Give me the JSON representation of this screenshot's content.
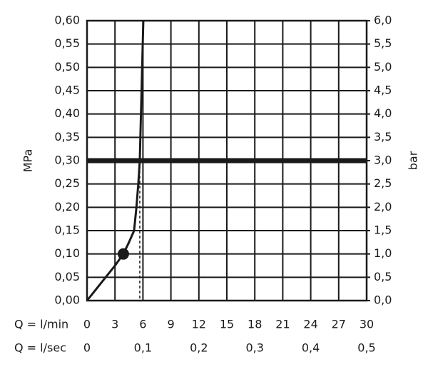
{
  "chart_data": {
    "type": "line",
    "y_label": "MPa",
    "y2_label": "bar",
    "x_label": "Q = l/min",
    "x2_label": "Q = l/sec",
    "x": [
      0,
      1,
      2,
      3,
      3.9,
      4.5,
      5.05,
      5.3,
      5.5,
      5.66,
      5.85,
      6.04
    ],
    "values": [
      0,
      0.025,
      0.05,
      0.075,
      0.1,
      0.125,
      0.15,
      0.2,
      0.25,
      0.3,
      0.45,
      0.6
    ],
    "color": "#1a1a1a",
    "operating_point": {
      "x": 3.9,
      "y": 0.1
    },
    "reference_pressure": 0.3,
    "drop_line_x": 5.66,
    "xlim": [
      0,
      30
    ],
    "xticks": [
      0,
      3,
      6,
      9,
      12,
      15,
      18,
      21,
      24,
      27,
      30
    ],
    "x2lim": [
      0,
      0.5
    ],
    "x2ticks": [
      0,
      {
        "value": 0.1,
        "label": "0,1"
      },
      {
        "value": 0.2,
        "label": "0,2"
      },
      {
        "value": 0.3,
        "label": "0,3"
      },
      {
        "value": 0.4,
        "label": "0,4"
      },
      {
        "value": 0.5,
        "label": "0,5"
      }
    ],
    "ylim": [
      0,
      0.6
    ],
    "yticks": [
      {
        "value": 0,
        "label": "0,00"
      },
      {
        "value": 0.05,
        "label": "0,05"
      },
      {
        "value": 0.1,
        "label": "0,10"
      },
      {
        "value": 0.15,
        "label": "0,15"
      },
      {
        "value": 0.2,
        "label": "0,20"
      },
      {
        "value": 0.25,
        "label": "0,25"
      },
      {
        "value": 0.3,
        "label": "0,30"
      },
      {
        "value": 0.35,
        "label": "0,35"
      },
      {
        "value": 0.4,
        "label": "0,40"
      },
      {
        "value": 0.45,
        "label": "0,45"
      },
      {
        "value": 0.5,
        "label": "0,50"
      },
      {
        "value": 0.55,
        "label": "0,55"
      },
      {
        "value": 0.6,
        "label": "0,60"
      }
    ],
    "y2lim": [
      0,
      6
    ],
    "y2ticks": [
      {
        "value": 0,
        "label": "0,0"
      },
      {
        "value": 0.5,
        "label": "0,5"
      },
      {
        "value": 1,
        "label": "1,0"
      },
      {
        "value": 1.5,
        "label": "1,5"
      },
      {
        "value": 2,
        "label": "2,0"
      },
      {
        "value": 2.5,
        "label": "2,5"
      },
      {
        "value": 3,
        "label": "3,0"
      },
      {
        "value": 3.5,
        "label": "3,5"
      },
      {
        "value": 4,
        "label": "4,0"
      },
      {
        "value": 4.5,
        "label": "4,5"
      },
      {
        "value": 5,
        "label": "5,0"
      },
      {
        "value": 5.5,
        "label": "5,5"
      },
      {
        "value": 6,
        "label": "6,0"
      }
    ],
    "grid": true
  }
}
